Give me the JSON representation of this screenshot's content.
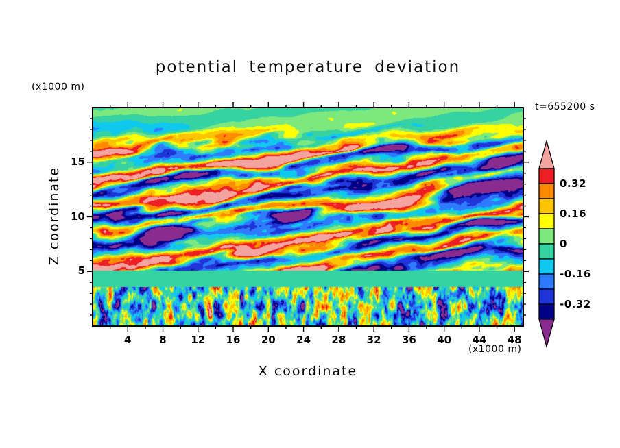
{
  "chart_data": {
    "type": "heatmap",
    "title": "potential temperature deviation",
    "time_label": "t=655200 s",
    "xlabel": "X coordinate",
    "ylabel": "Z coordinate",
    "x_unit_label": "(x1000 m)",
    "z_unit_label": "(x1000 m)",
    "xlim": [
      0,
      49
    ],
    "zlim": [
      0,
      20
    ],
    "x_major_ticks": [
      4,
      8,
      12,
      16,
      20,
      24,
      28,
      32,
      36,
      40,
      44,
      48
    ],
    "x_minor_step": 2,
    "z_major_ticks": [
      5,
      10,
      15
    ],
    "z_minor_step": 1,
    "contour_interval": 0.08,
    "levels": [
      -0.4,
      -0.32,
      -0.24,
      -0.16,
      -0.08,
      0,
      0.08,
      0.16,
      0.24,
      0.32,
      0.4
    ],
    "band_colors_low_to_high": [
      "#8A2B8F",
      "#000087",
      "#1F35D8",
      "#2E7BFF",
      "#0FC8EE",
      "#37D2A2",
      "#7DE87D",
      "#FFFF00",
      "#FFC400",
      "#FF8A00",
      "#ED1F24",
      "#F4A49E"
    ],
    "colorbar_labels": [
      "0.32",
      "0.16",
      "0",
      "-0.16",
      "-0.32"
    ],
    "legend_position": "right",
    "grid": false,
    "field_note": "filled-contour field of potential temperature deviation: tilted turbulent layers aloft, quiet band near z=4-5, small convective cells below",
    "field_approximation": {
      "tilt": 0.11,
      "wave_k": 2.35,
      "wave_amp": 0.3,
      "phase_mod": 3.5,
      "n1_amp": 0.3,
      "n2_amp": 0.22,
      "n3_amp": 0.09,
      "bias": 0.02,
      "gain": 1.12,
      "quiet_band_z": [
        3.55,
        5.05
      ],
      "quiet_mean": -0.045,
      "quiet_noise": 0.034,
      "bl_gain": 1.6,
      "bl_bias": -0.02,
      "fade_top_z": 16.6,
      "fade_width": 2.4,
      "fade_floor": 0.15
    }
  }
}
